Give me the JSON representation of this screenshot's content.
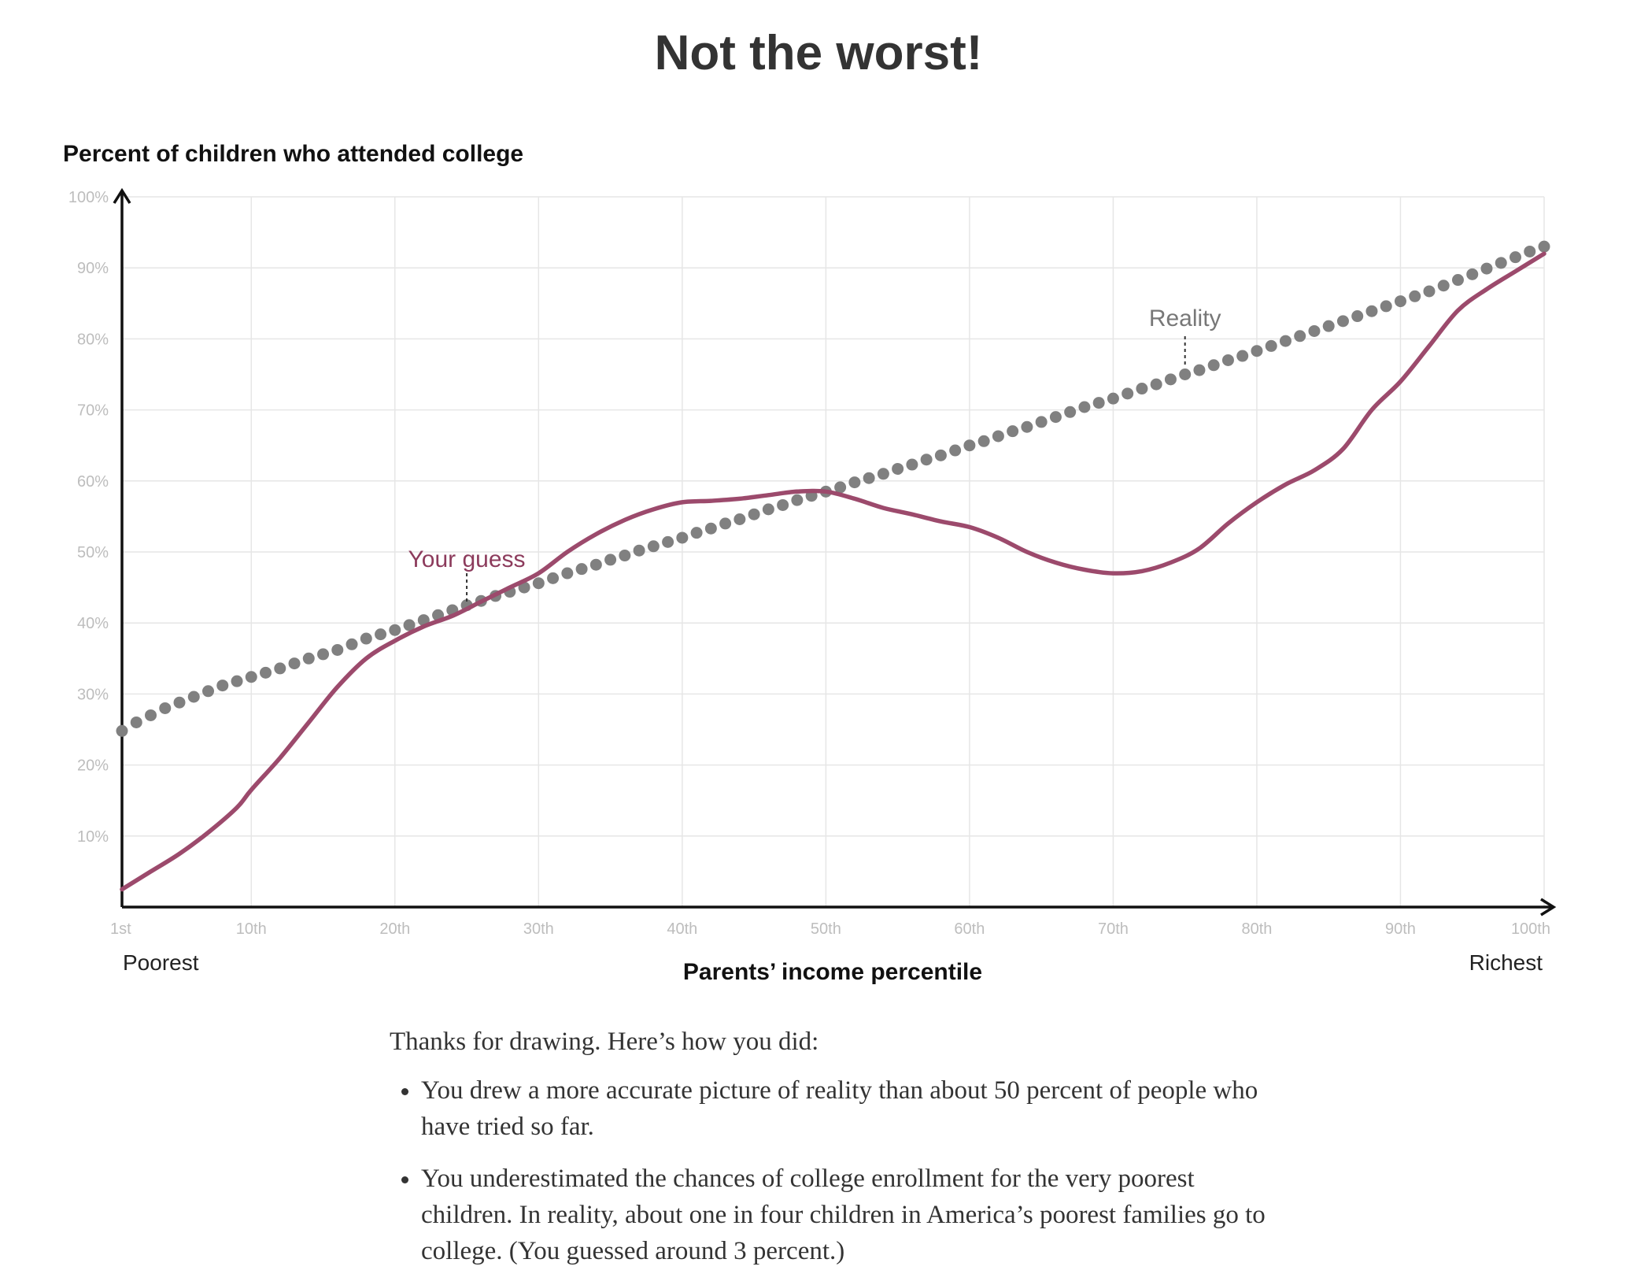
{
  "headline": "Not the worst!",
  "chart_data": {
    "type": "line",
    "ylabel": "Percent of children who attended college",
    "xlabel": "Parents’ income percentile",
    "x_range": [
      1,
      100
    ],
    "ylim": [
      0,
      100
    ],
    "y_ticks": [
      {
        "value": 10,
        "label": "10%"
      },
      {
        "value": 20,
        "label": "20%"
      },
      {
        "value": 30,
        "label": "30%"
      },
      {
        "value": 40,
        "label": "40%"
      },
      {
        "value": 50,
        "label": "50%"
      },
      {
        "value": 60,
        "label": "60%"
      },
      {
        "value": 70,
        "label": "70%"
      },
      {
        "value": 80,
        "label": "80%"
      },
      {
        "value": 90,
        "label": "90%"
      },
      {
        "value": 100,
        "label": "100%"
      }
    ],
    "x_ticks": [
      {
        "value": 1,
        "label": "1st"
      },
      {
        "value": 10,
        "label": "10th"
      },
      {
        "value": 20,
        "label": "20th"
      },
      {
        "value": 30,
        "label": "30th"
      },
      {
        "value": 40,
        "label": "40th"
      },
      {
        "value": 50,
        "label": "50th"
      },
      {
        "value": 60,
        "label": "60th"
      },
      {
        "value": 70,
        "label": "70th"
      },
      {
        "value": 80,
        "label": "80th"
      },
      {
        "value": 90,
        "label": "90th"
      },
      {
        "value": 100,
        "label": "100th"
      }
    ],
    "x_end_labels": {
      "left": "Poorest",
      "right": "Richest"
    },
    "grid": true,
    "series": [
      {
        "name": "Reality",
        "style": "dots",
        "color": "#808080",
        "annotation_x": 75,
        "x": [
          1,
          2,
          3,
          4,
          5,
          6,
          7,
          8,
          9,
          10,
          11,
          12,
          13,
          14,
          15,
          16,
          17,
          18,
          19,
          20,
          21,
          22,
          23,
          24,
          25,
          26,
          27,
          28,
          29,
          30,
          31,
          32,
          33,
          34,
          35,
          36,
          37,
          38,
          39,
          40,
          41,
          42,
          43,
          44,
          45,
          46,
          47,
          48,
          49,
          50,
          51,
          52,
          53,
          54,
          55,
          56,
          57,
          58,
          59,
          60,
          61,
          62,
          63,
          64,
          65,
          66,
          67,
          68,
          69,
          70,
          71,
          72,
          73,
          74,
          75,
          76,
          77,
          78,
          79,
          80,
          81,
          82,
          83,
          84,
          85,
          86,
          87,
          88,
          89,
          90,
          91,
          92,
          93,
          94,
          95,
          96,
          97,
          98,
          99,
          100
        ],
        "y": [
          24.8,
          26.0,
          27.0,
          28.0,
          28.8,
          29.6,
          30.4,
          31.2,
          31.8,
          32.4,
          33.0,
          33.6,
          34.3,
          35.0,
          35.6,
          36.2,
          37.0,
          37.8,
          38.4,
          39.0,
          39.7,
          40.4,
          41.1,
          41.8,
          42.5,
          43.1,
          43.8,
          44.4,
          45.0,
          45.6,
          46.3,
          47.0,
          47.6,
          48.2,
          48.9,
          49.5,
          50.2,
          50.8,
          51.4,
          52.0,
          52.7,
          53.3,
          54.0,
          54.6,
          55.3,
          56.0,
          56.6,
          57.3,
          57.9,
          58.5,
          59.1,
          59.8,
          60.4,
          61.0,
          61.7,
          62.3,
          63.0,
          63.6,
          64.3,
          65.0,
          65.6,
          66.3,
          67.0,
          67.6,
          68.3,
          69.0,
          69.7,
          70.4,
          71.0,
          71.6,
          72.3,
          73.0,
          73.6,
          74.3,
          75.0,
          75.6,
          76.3,
          77.0,
          77.6,
          78.3,
          79.0,
          79.7,
          80.4,
          81.1,
          81.8,
          82.5,
          83.2,
          83.9,
          84.6,
          85.3,
          86.0,
          86.7,
          87.5,
          88.3,
          89.1,
          89.9,
          90.7,
          91.5,
          92.3,
          93.0
        ]
      },
      {
        "name": "Your guess",
        "style": "line",
        "color": "#9c4a6c",
        "annotation_x": 25,
        "x": [
          1,
          3,
          5,
          7,
          9,
          10,
          12,
          14,
          16,
          18,
          20,
          22,
          24,
          26,
          28,
          30,
          32,
          34,
          36,
          38,
          40,
          42,
          44,
          46,
          48,
          50,
          52,
          54,
          56,
          58,
          60,
          62,
          64,
          66,
          68,
          70,
          72,
          74,
          76,
          78,
          80,
          82,
          84,
          86,
          88,
          90,
          92,
          94,
          96,
          98,
          100
        ],
        "y": [
          2.5,
          5.0,
          7.5,
          10.5,
          14.0,
          16.5,
          21.0,
          26.0,
          31.0,
          35.0,
          37.5,
          39.5,
          41.0,
          43.0,
          45.0,
          47.0,
          50.0,
          52.5,
          54.5,
          56.0,
          57.0,
          57.2,
          57.5,
          58.0,
          58.5,
          58.5,
          57.5,
          56.2,
          55.3,
          54.3,
          53.5,
          52.0,
          50.0,
          48.5,
          47.5,
          47.0,
          47.3,
          48.5,
          50.5,
          54.0,
          57.0,
          59.5,
          61.5,
          64.5,
          70.0,
          74.0,
          79.0,
          84.0,
          87.0,
          89.5,
          92.0
        ]
      }
    ]
  },
  "results": {
    "intro": "Thanks for drawing. Here’s how you did:",
    "bullets": [
      "You drew a more accurate picture of reality than about 50 percent of people who have tried so far.",
      "You underestimated the chances of college enrollment for the very poorest children. In reality, about one in four children in America’s poorest families go to college. (You guessed around 3 percent.)"
    ]
  }
}
